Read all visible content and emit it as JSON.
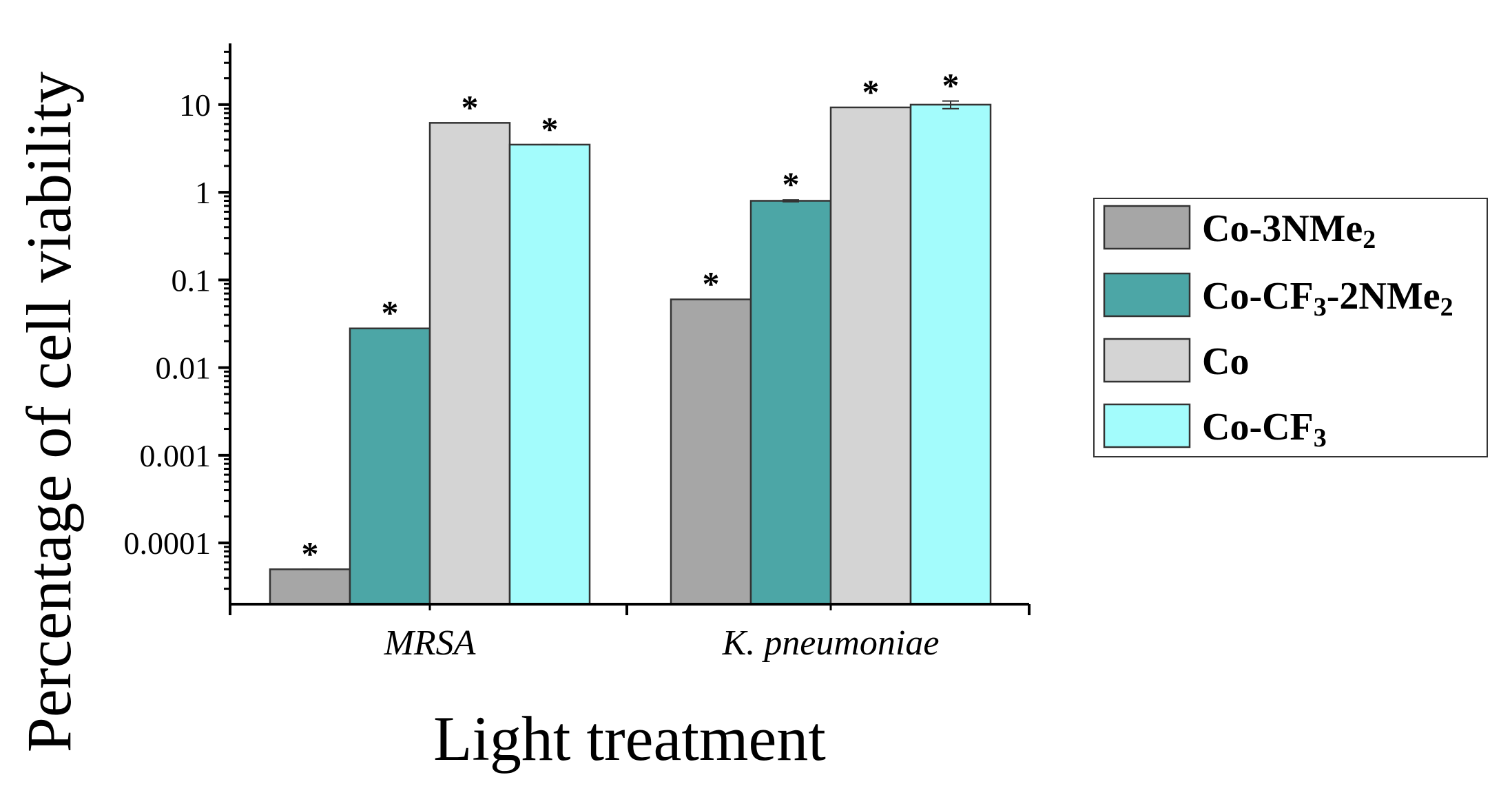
{
  "chart_data": {
    "type": "bar",
    "title": "",
    "xlabel": "Light treatment",
    "ylabel": "Percentage of cell viability",
    "yscale": "log",
    "ylim": [
      2e-05,
      50
    ],
    "yticks": [
      0.0001,
      0.001,
      0.01,
      0.1,
      1,
      10
    ],
    "ytick_labels": [
      "0.0001",
      "0.001",
      "0.01",
      "0.1",
      "1",
      "10"
    ],
    "categories": [
      "MRSA",
      "K. pneumoniae"
    ],
    "grid": false,
    "legend_position": "right",
    "series": [
      {
        "name": "Co-3NMe2",
        "label_main": "Co-3NMe",
        "label_sub": "2",
        "label_tail": "",
        "label_sub2": "",
        "color": "#a6a6a6",
        "values": [
          5e-05,
          0.06
        ],
        "errors": [
          0,
          0
        ],
        "markers": [
          "*",
          "*"
        ]
      },
      {
        "name": "Co-CF3-2NMe2",
        "label_main": "Co-CF",
        "label_sub": "3",
        "label_tail": "-2NMe",
        "label_sub2": "2",
        "color": "#4ca6a6",
        "values": [
          0.028,
          0.8
        ],
        "errors": [
          0,
          0.02
        ],
        "markers": [
          "*",
          "*"
        ]
      },
      {
        "name": "Co",
        "label_main": "Co",
        "label_sub": "",
        "label_tail": "",
        "label_sub2": "",
        "color": "#d4d4d4",
        "values": [
          6.2,
          9.3
        ],
        "errors": [
          0,
          0
        ],
        "markers": [
          "*",
          "*"
        ]
      },
      {
        "name": "Co-CF3",
        "label_main": "Co-CF",
        "label_sub": "3",
        "label_tail": "",
        "label_sub2": "",
        "color": "#a3fcfc",
        "values": [
          3.5,
          10.0
        ],
        "errors": [
          0,
          1.0
        ],
        "markers": [
          "*",
          "*"
        ]
      }
    ]
  }
}
